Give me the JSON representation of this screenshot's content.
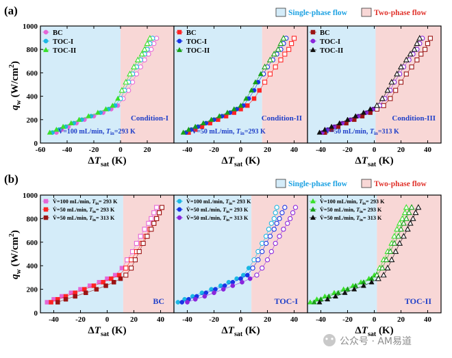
{
  "figure": {
    "panel_labels": [
      "(a)",
      "(b)"
    ],
    "legend_single": "Single-phase flow",
    "legend_two": "Two-phase flow",
    "ylabel_main": "q",
    "ylabel_sub": "w",
    "ylabel_unit": " (W/cm",
    "ylabel_sup": "2",
    "ylabel_close": ")",
    "xlabel_main": "ΔT",
    "xlabel_sub": "sat",
    "xlabel_unit": " (K)",
    "watermark": "公众号 · AM易道"
  },
  "colors": {
    "single_phase": "#d4ecf9",
    "two_phase": "#f8d7d6",
    "single_text": "#1ba1e2",
    "two_text": "#e0322b",
    "cond_text": "#1f3fc8",
    "BC": "#e566d6",
    "TOC-I": "#1cb7e4",
    "TOC-II": "#39e02a",
    "red": "#ff2424",
    "blue": "#1834e6",
    "green": "#18a018",
    "darkred": "#9a1414",
    "purple": "#8a26dc",
    "black": "#111111"
  },
  "chart_data": [
    {
      "type": "scatter",
      "id": "a1",
      "row": "a",
      "title": "Condition-I",
      "flow_label": "V̇=100 mL/min, T_in=293 K",
      "xlim": [
        -60,
        40
      ],
      "ylim": [
        0,
        1000
      ],
      "xticks": [
        -60,
        -40,
        -20,
        0,
        20
      ],
      "yticks": [
        0,
        200,
        400,
        600,
        800,
        1000
      ],
      "boundary": 0,
      "legend": [
        "BC",
        "TOC-I",
        "TOC-II"
      ],
      "series": [
        {
          "name": "BC",
          "marker": "circle",
          "color": "#e566d6",
          "x": [
            -48,
            -44,
            -39,
            -33,
            -27,
            -20,
            -13,
            -7,
            -2,
            2,
            6,
            9,
            12,
            15,
            18,
            21,
            23,
            25,
            27
          ],
          "y": [
            90,
            115,
            140,
            170,
            200,
            230,
            260,
            290,
            320,
            380,
            450,
            520,
            590,
            650,
            710,
            760,
            800,
            850,
            895
          ]
        },
        {
          "name": "TOC-I",
          "marker": "circle",
          "color": "#1cb7e4",
          "x": [
            -51,
            -46,
            -41,
            -35,
            -29,
            -22,
            -15,
            -9,
            -4,
            0,
            3,
            6,
            9,
            12,
            15,
            18,
            20,
            22,
            24
          ],
          "y": [
            90,
            115,
            140,
            170,
            200,
            230,
            260,
            290,
            320,
            380,
            450,
            520,
            590,
            650,
            710,
            760,
            800,
            850,
            895
          ]
        },
        {
          "name": "TOC-II",
          "marker": "triangle",
          "color": "#39e02a",
          "x": [
            -53,
            -48,
            -43,
            -37,
            -31,
            -24,
            -17,
            -11,
            -6,
            -2,
            1,
            4,
            7,
            10,
            13,
            16,
            18,
            20,
            22
          ],
          "y": [
            90,
            115,
            140,
            170,
            200,
            230,
            260,
            290,
            320,
            380,
            450,
            520,
            590,
            650,
            710,
            760,
            800,
            850,
            895
          ]
        }
      ]
    },
    {
      "type": "scatter",
      "id": "a2",
      "row": "a",
      "title": "Condition-II",
      "flow_label": "V̇=50 mL/min, T_in=293 K",
      "xlim": [
        -50,
        50
      ],
      "ylim": [
        0,
        1000
      ],
      "xticks": [
        -40,
        -20,
        0,
        20,
        40
      ],
      "yticks": [],
      "boundary": 16,
      "legend": [
        "BC",
        "TOC-I",
        "TOC-II"
      ],
      "series": [
        {
          "name": "BC",
          "marker": "square",
          "color": "#ff2424",
          "x": [
            -39,
            -34,
            -29,
            -23,
            -17,
            -11,
            -5,
            0,
            5,
            10,
            14,
            18,
            22,
            26,
            30,
            33,
            36,
            38,
            40
          ],
          "y": [
            90,
            115,
            140,
            170,
            200,
            230,
            260,
            290,
            320,
            380,
            450,
            520,
            590,
            650,
            710,
            760,
            800,
            850,
            895
          ]
        },
        {
          "name": "TOC-I",
          "marker": "circle",
          "color": "#1834e6",
          "x": [
            -41,
            -37,
            -32,
            -26,
            -20,
            -14,
            -8,
            -3,
            2,
            6,
            10,
            13,
            17,
            20,
            24,
            27,
            30,
            32,
            34
          ],
          "y": [
            90,
            115,
            140,
            170,
            200,
            230,
            260,
            290,
            320,
            380,
            450,
            520,
            590,
            650,
            710,
            760,
            800,
            850,
            895
          ]
        },
        {
          "name": "TOC-II",
          "marker": "triangle",
          "color": "#18a018",
          "x": [
            -43,
            -39,
            -34,
            -28,
            -22,
            -16,
            -10,
            -5,
            0,
            4,
            8,
            11,
            15,
            18,
            22,
            25,
            28,
            30,
            32
          ],
          "y": [
            90,
            115,
            140,
            170,
            200,
            230,
            260,
            290,
            320,
            380,
            450,
            520,
            590,
            650,
            710,
            760,
            800,
            850,
            895
          ]
        }
      ]
    },
    {
      "type": "scatter",
      "id": "a3",
      "row": "a",
      "title": "Condition-III",
      "flow_label": "V̇=50 mL/min, T_in=313 K",
      "xlim": [
        -50,
        50
      ],
      "ylim": [
        0,
        1000
      ],
      "xticks": [
        -40,
        -20,
        0,
        20,
        40
      ],
      "yticks": [],
      "boundary": 1,
      "legend": [
        "BC",
        "TOC-I",
        "TOC-II"
      ],
      "series": [
        {
          "name": "BC",
          "marker": "square",
          "color": "#9a1414",
          "x": [
            -37,
            -32,
            -27,
            -21,
            -15,
            -9,
            -3,
            2,
            7,
            12,
            16,
            20,
            24,
            28,
            32,
            35,
            38,
            40,
            42
          ],
          "y": [
            90,
            115,
            140,
            170,
            200,
            230,
            260,
            290,
            320,
            380,
            450,
            520,
            590,
            650,
            710,
            760,
            800,
            850,
            895
          ]
        },
        {
          "name": "TOC-I",
          "marker": "circle",
          "color": "#8a26dc",
          "x": [
            -39,
            -35,
            -30,
            -24,
            -18,
            -12,
            -6,
            -1,
            4,
            8,
            12,
            15,
            19,
            22,
            26,
            29,
            32,
            34,
            36
          ],
          "y": [
            90,
            115,
            140,
            170,
            200,
            230,
            260,
            290,
            320,
            380,
            450,
            520,
            590,
            650,
            710,
            760,
            800,
            850,
            895
          ]
        },
        {
          "name": "TOC-II",
          "marker": "triangle",
          "color": "#111111",
          "x": [
            -41,
            -37,
            -32,
            -26,
            -20,
            -14,
            -8,
            -3,
            2,
            6,
            10,
            13,
            17,
            20,
            24,
            27,
            30,
            32,
            34
          ],
          "y": [
            90,
            115,
            140,
            170,
            200,
            230,
            260,
            290,
            320,
            380,
            450,
            520,
            590,
            650,
            710,
            760,
            800,
            850,
            895
          ]
        }
      ]
    },
    {
      "type": "scatter",
      "id": "b1",
      "row": "b",
      "title": "BC",
      "xlim": [
        -50,
        50
      ],
      "ylim": [
        0,
        1000
      ],
      "xticks": [
        -40,
        -20,
        0,
        20,
        40
      ],
      "yticks": [
        0,
        200,
        400,
        600,
        800,
        1000
      ],
      "boundary": 12,
      "legend": [
        "V̇=100 mL/min, T_in= 293 K",
        "V̇=50 mL/min, T_in= 293 K",
        "V̇=50 mL/min, T_in= 313 K"
      ],
      "series": [
        {
          "name": "V̇=100 mL/min, T_in= 293 K",
          "marker": "square",
          "color": "#e566d6",
          "x": [
            -45,
            -40,
            -34,
            -27,
            -20,
            -13,
            -6,
            0,
            6,
            11,
            15,
            19,
            22,
            25,
            28,
            31,
            33,
            35,
            37
          ],
          "y": [
            90,
            115,
            140,
            170,
            200,
            230,
            260,
            290,
            320,
            380,
            450,
            520,
            590,
            650,
            710,
            760,
            800,
            850,
            895
          ]
        },
        {
          "name": "V̇=50 mL/min, T_in= 293 K",
          "marker": "square",
          "color": "#ff2424",
          "x": [
            -42,
            -37,
            -31,
            -24,
            -17,
            -10,
            -3,
            3,
            9,
            14,
            18,
            22,
            26,
            29,
            32,
            35,
            37,
            39,
            41
          ],
          "y": [
            90,
            115,
            140,
            170,
            200,
            230,
            260,
            290,
            320,
            380,
            450,
            520,
            590,
            650,
            710,
            760,
            800,
            850,
            895
          ]
        },
        {
          "name": "V̇=50 mL/min, T_in= 313 K",
          "marker": "square",
          "color": "#9a1414",
          "x": [
            -37,
            -31,
            -24,
            -16,
            -8,
            -1,
            5,
            10,
            14,
            18,
            21,
            24,
            27,
            30,
            33,
            35,
            37,
            39,
            41
          ],
          "y": [
            90,
            115,
            140,
            170,
            200,
            230,
            260,
            290,
            320,
            380,
            450,
            520,
            590,
            650,
            710,
            760,
            800,
            850,
            895
          ]
        }
      ]
    },
    {
      "type": "scatter",
      "id": "b2",
      "row": "b",
      "title": "TOC-I",
      "xlim": [
        -50,
        50
      ],
      "ylim": [
        0,
        1000
      ],
      "xticks": [
        -40,
        -20,
        0,
        20,
        40
      ],
      "yticks": [],
      "boundary": 8,
      "legend": [
        "V̇=100 mL/min, T_in= 293 K",
        "V̇=50 mL/min, T_in= 293 K",
        "V̇=50 mL/min, T_in= 313 K"
      ],
      "series": [
        {
          "name": "V̇=100 mL/min, T_in= 293 K",
          "marker": "circle",
          "color": "#1cb7e4",
          "x": [
            -47,
            -42,
            -36,
            -29,
            -22,
            -15,
            -9,
            -3,
            2,
            6,
            10,
            13,
            16,
            19,
            21,
            23,
            25,
            26,
            27
          ],
          "y": [
            90,
            115,
            140,
            170,
            200,
            230,
            260,
            290,
            320,
            380,
            450,
            520,
            590,
            650,
            710,
            760,
            800,
            850,
            895
          ]
        },
        {
          "name": "V̇=50 mL/min, T_in= 293 K",
          "marker": "circle",
          "color": "#1834e6",
          "x": [
            -44,
            -39,
            -33,
            -26,
            -19,
            -12,
            -6,
            0,
            5,
            9,
            13,
            16,
            19,
            22,
            25,
            27,
            29,
            31,
            33
          ],
          "y": [
            90,
            115,
            140,
            170,
            200,
            230,
            260,
            290,
            320,
            380,
            450,
            520,
            590,
            650,
            710,
            760,
            800,
            850,
            895
          ]
        },
        {
          "name": "V̇=50 mL/min, T_in= 313 K",
          "marker": "circle",
          "color": "#8a26dc",
          "x": [
            -40,
            -34,
            -27,
            -20,
            -13,
            -6,
            1,
            7,
            12,
            16,
            20,
            23,
            26,
            29,
            32,
            35,
            37,
            39,
            41
          ],
          "y": [
            90,
            115,
            140,
            170,
            200,
            230,
            260,
            290,
            320,
            380,
            450,
            520,
            590,
            650,
            710,
            760,
            800,
            850,
            895
          ]
        }
      ]
    },
    {
      "type": "scatter",
      "id": "b3",
      "row": "b",
      "title": "TOC-II",
      "xlim": [
        -50,
        50
      ],
      "ylim": [
        0,
        1000
      ],
      "xticks": [
        -40,
        -20,
        0,
        20,
        40
      ],
      "yticks": [],
      "boundary": 2,
      "legend": [
        "V̇=100 mL/min, T_in= 293 K",
        "V̇=50 mL/min, T_in= 293 K",
        "V̇=50 mL/min, T_in= 313 K"
      ],
      "series": [
        {
          "name": "V̇=100 mL/min, T_in= 293 K",
          "marker": "triangle",
          "color": "#39e02a",
          "x": [
            -48,
            -43,
            -37,
            -30,
            -23,
            -16,
            -10,
            -4,
            0,
            4,
            7,
            10,
            13,
            15,
            17,
            19,
            21,
            23,
            24
          ],
          "y": [
            90,
            115,
            140,
            170,
            200,
            230,
            260,
            290,
            320,
            380,
            450,
            520,
            590,
            650,
            710,
            760,
            800,
            850,
            895
          ]
        },
        {
          "name": "V̇=50 mL/min, T_in= 293 K",
          "marker": "triangle",
          "color": "#18a018",
          "x": [
            -45,
            -40,
            -34,
            -27,
            -20,
            -14,
            -8,
            -2,
            2,
            6,
            9,
            12,
            15,
            18,
            20,
            22,
            24,
            26,
            28
          ],
          "y": [
            90,
            115,
            140,
            170,
            200,
            230,
            260,
            290,
            320,
            380,
            450,
            520,
            590,
            650,
            710,
            760,
            800,
            850,
            895
          ]
        },
        {
          "name": "V̇=50 mL/min, T_in= 313 K",
          "marker": "triangle",
          "color": "#111111",
          "x": [
            -41,
            -35,
            -29,
            -22,
            -15,
            -8,
            -2,
            3,
            7,
            10,
            13,
            16,
            19,
            22,
            25,
            27,
            29,
            31,
            33
          ],
          "y": [
            90,
            115,
            140,
            170,
            200,
            230,
            260,
            290,
            320,
            380,
            450,
            520,
            590,
            650,
            710,
            760,
            800,
            850,
            895
          ]
        }
      ]
    }
  ]
}
